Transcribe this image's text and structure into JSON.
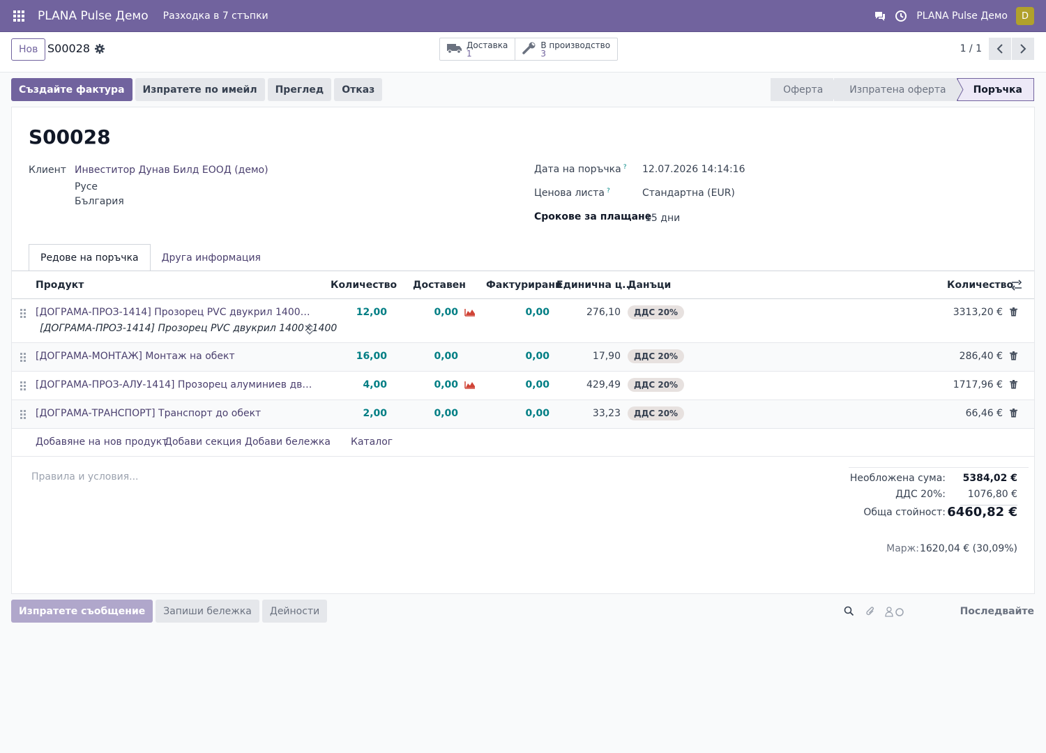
{
  "navbar": {
    "brand": "PLANA Pulse Демо",
    "menu_item": "Разходка в 7 стъпки",
    "user_name": "PLANA Pulse Демо",
    "avatar_letter": "D"
  },
  "control": {
    "new_label": "Нов",
    "record_name": "S00028",
    "smart_buttons": [
      {
        "label": "Доставка",
        "count": "1",
        "icon": "truck-icon"
      },
      {
        "label": "В производство",
        "count": "3",
        "icon": "wrench-icon"
      }
    ],
    "pager": "1 / 1"
  },
  "actions": {
    "create_invoice": "Създайте фактура",
    "send_email": "Изпратете по имейл",
    "preview": "Преглед",
    "cancel": "Отказ"
  },
  "stages": [
    "Оферта",
    "Изпратена оферта",
    "Поръчка"
  ],
  "form": {
    "title": "S00028",
    "client_label": "Клиент",
    "client_name": "Инвеститор Дунав Билд ЕООД (демо)",
    "client_city": "Русе",
    "client_country": "България",
    "order_date_label": "Дата на поръчка",
    "order_date": "12.07.2026 14:14:16",
    "pricelist_label": "Ценова листа",
    "pricelist": "Стандартна (EUR)",
    "payment_terms_label": "Срокове за плащане",
    "payment_terms": "15 дни",
    "help_mark": "?"
  },
  "tabs": [
    "Редове на поръчка",
    "Друга информация"
  ],
  "table": {
    "headers": {
      "product": "Продукт",
      "qty": "Количество",
      "delivered": "Доставен",
      "invoiced": "Фактурирани",
      "unit_price": "Единична ц...",
      "taxes": "Данъци",
      "subtotal": "Количество"
    },
    "rows": [
      {
        "product": "[ДОГРАМА-ПРОЗ-1414] Прозорец PVC двукрил 1400×1400...",
        "desc": "[ДОГРАМА-ПРОЗ-1414] Прозорец PVC двукрил 1400×1400",
        "qty": "12,00",
        "delivered": "0,00",
        "invoiced": "0,00",
        "price": "276,10",
        "tax": "ДДС 20%",
        "subtotal": "3313,20 €",
        "forecast": true
      },
      {
        "product": "[ДОГРАМА-МОНТАЖ] Монтаж на обект",
        "desc": "",
        "qty": "16,00",
        "delivered": "0,00",
        "invoiced": "0,00",
        "price": "17,90",
        "tax": "ДДС 20%",
        "subtotal": "286,40 €",
        "forecast": false
      },
      {
        "product": "[ДОГРАМА-ПРОЗ-АЛУ-1414] Прозорец алуминиев двукри...",
        "desc": "",
        "qty": "4,00",
        "delivered": "0,00",
        "invoiced": "0,00",
        "price": "429,49",
        "tax": "ДДС 20%",
        "subtotal": "1717,96 €",
        "forecast": true
      },
      {
        "product": "[ДОГРАМА-ТРАНСПОРТ] Транспорт до обект",
        "desc": "",
        "qty": "2,00",
        "delivered": "0,00",
        "invoiced": "0,00",
        "price": "33,23",
        "tax": "ДДС 20%",
        "subtotal": "66,46 €",
        "forecast": false
      }
    ],
    "add_product": "Добавяне на нов продукт",
    "add_section": "Добави секция",
    "add_note": "Добави бележка",
    "catalog": "Каталог"
  },
  "footer": {
    "terms_placeholder": "Правила и условия...",
    "untaxed_label": "Необложена сума:",
    "untaxed_value": "5384,02 €",
    "vat_label": "ДДС 20%:",
    "vat_value": "1076,80 €",
    "total_label": "Обща стойност:",
    "total_value": "6460,82 €",
    "margin_label": "Марж:",
    "margin_value": "1620,04 € (30,09%)"
  },
  "chatter": {
    "send_message": "Изпратете съобщение",
    "log_note": "Запиши бележка",
    "activities": "Дейности",
    "follow": "Последвайте"
  },
  "colors": {
    "brand": "#71639e",
    "link": "#4a3f6e",
    "number": "#017e84",
    "forecast_icon": "#d04437"
  }
}
